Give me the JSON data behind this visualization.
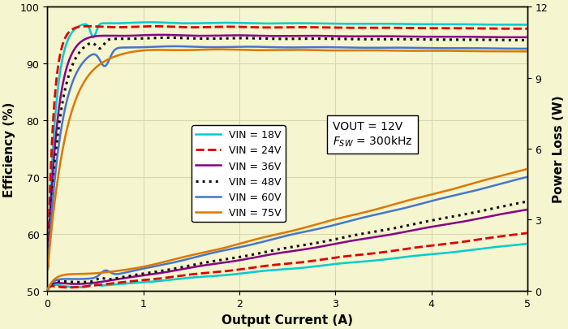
{
  "xlabel": "Output Current (A)",
  "ylabel_left": "Efficiency (%)",
  "ylabel_right": "Power Loss (W)",
  "xlim": [
    0,
    5
  ],
  "ylim_left": [
    50,
    100
  ],
  "ylim_right": [
    0,
    12
  ],
  "background_color": "#f5f5d0",
  "grid_color": "#d8d8b0",
  "legend_entries": [
    {
      "label": "VIN = 18V",
      "color": "#00cccc",
      "linestyle": "solid",
      "linewidth": 1.8
    },
    {
      "label": "VIN = 24V",
      "color": "#dd0000",
      "linestyle": "dashed",
      "linewidth": 2.0
    },
    {
      "label": "VIN = 36V",
      "color": "#880088",
      "linestyle": "solid",
      "linewidth": 1.8
    },
    {
      "label": "VIN = 48V",
      "color": "#111111",
      "linestyle": "dotted",
      "linewidth": 2.2
    },
    {
      "label": "VIN = 60V",
      "color": "#4477cc",
      "linestyle": "solid",
      "linewidth": 1.8
    },
    {
      "label": "VIN = 75V",
      "color": "#dd7700",
      "linestyle": "solid",
      "linewidth": 1.8
    }
  ],
  "xticks": [
    0,
    1,
    2,
    3,
    4,
    5
  ],
  "yticks_left": [
    50,
    60,
    70,
    80,
    90,
    100
  ],
  "yticks_right": [
    0,
    3,
    6,
    9,
    12
  ]
}
